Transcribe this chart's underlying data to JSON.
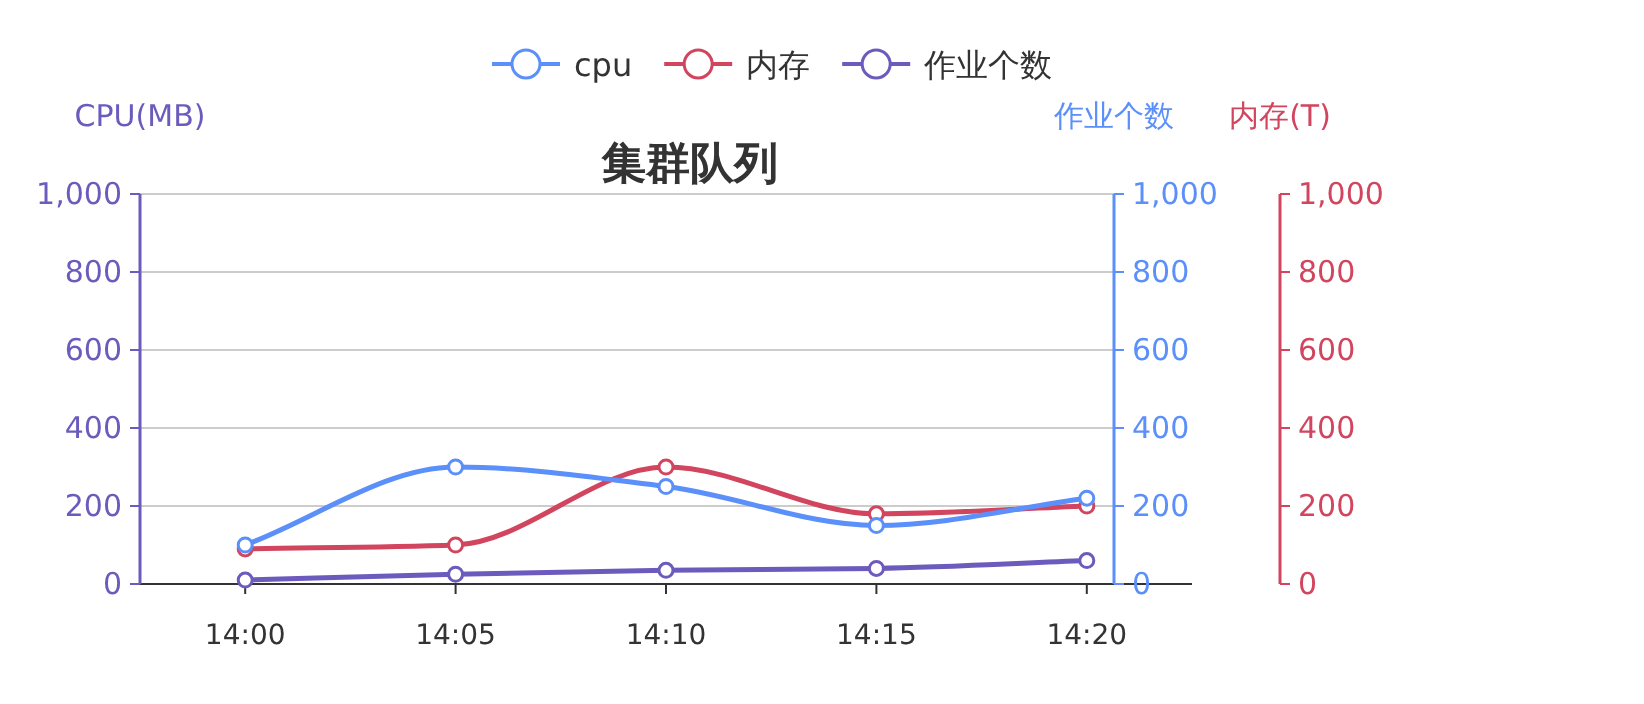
{
  "chart_data": {
    "type": "line",
    "title": "集群队列",
    "ylabel": "CPU(MB)",
    "y2label": "作业个数",
    "y3label": "内存(T)",
    "categories": [
      "14:00",
      "14:05",
      "14:10",
      "14:15",
      "14:20"
    ],
    "series": [
      {
        "name": "cpu",
        "color": "#5b8ff9",
        "axis": "y2",
        "values": [
          100,
          300,
          250,
          150,
          220
        ]
      },
      {
        "name": "内存",
        "color": "#d1455f",
        "axis": "y3",
        "values": [
          90,
          100,
          300,
          180,
          200
        ]
      },
      {
        "name": "作业个数",
        "color": "#6c5bbd",
        "axis": "y",
        "values": [
          10,
          25,
          35,
          40,
          60
        ]
      }
    ],
    "ylim": [
      0,
      1000
    ],
    "yticks": [
      0,
      200,
      400,
      600,
      800,
      {
        "value": 1000,
        "label": "1,000"
      }
    ],
    "y2lim": [
      0,
      1000
    ],
    "y2ticks": [
      0,
      200,
      400,
      600,
      800,
      {
        "value": 1000,
        "label": "1,000"
      }
    ],
    "y3lim": [
      0,
      1000
    ],
    "y3ticks": [
      0,
      200,
      400,
      600,
      800,
      {
        "value": 1000,
        "label": "1,000"
      }
    ],
    "grid": "y",
    "legend": "top",
    "marker": "circle",
    "line_style": "solid"
  }
}
